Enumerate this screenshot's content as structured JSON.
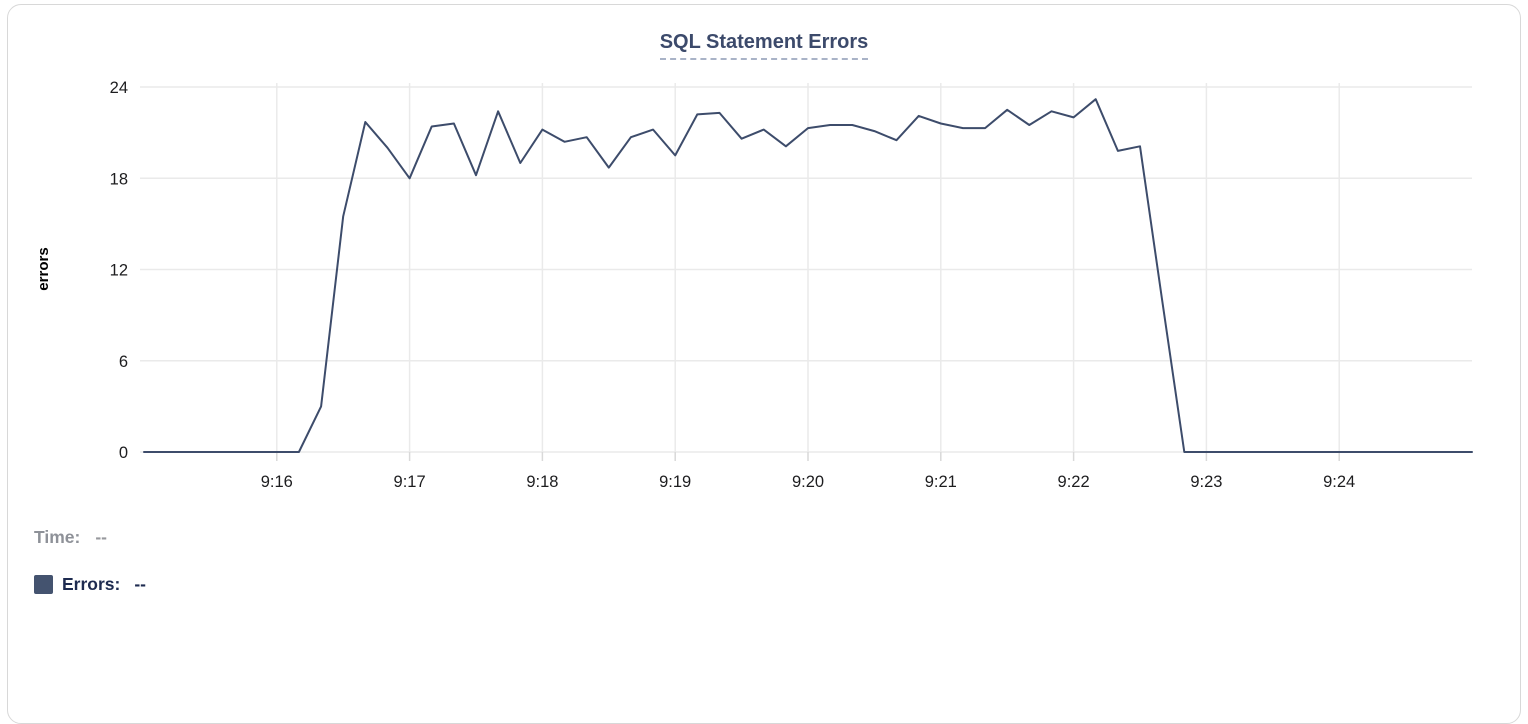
{
  "title": "SQL Statement Errors",
  "colors": {
    "line": "#3d4c6b",
    "title": "#3c4a6b",
    "swatch": "#44536f",
    "tick_label": "#1d1d1f",
    "grid": "#eaeaea",
    "axis_tick": "#d9d9d9"
  },
  "legend": {
    "time_label": "Time:",
    "time_value": "--",
    "series_label": "Errors:",
    "series_value": "--"
  },
  "chart_data": {
    "type": "line",
    "title": "SQL Statement Errors",
    "xlabel": "",
    "ylabel": "errors",
    "ylim": [
      0,
      24
    ],
    "yticks": [
      0,
      6,
      12,
      18,
      24
    ],
    "xticks": [
      "9:16",
      "9:17",
      "9:18",
      "9:19",
      "9:20",
      "9:21",
      "9:22",
      "9:23",
      "9:24"
    ],
    "x_range": [
      "9:15:00",
      "9:25:00"
    ],
    "grid": true,
    "legend_position": "below-left",
    "series": [
      {
        "name": "Errors",
        "color": "#3d4c6b",
        "points": [
          [
            "9:15:00",
            0
          ],
          [
            "9:15:10",
            0
          ],
          [
            "9:15:20",
            0
          ],
          [
            "9:15:30",
            0
          ],
          [
            "9:15:40",
            0
          ],
          [
            "9:15:50",
            0
          ],
          [
            "9:16:00",
            0
          ],
          [
            "9:16:10",
            0
          ],
          [
            "9:16:20",
            3
          ],
          [
            "9:16:30",
            15.5
          ],
          [
            "9:16:40",
            21.7
          ],
          [
            "9:16:50",
            20
          ],
          [
            "9:17:00",
            18
          ],
          [
            "9:17:10",
            21.4
          ],
          [
            "9:17:20",
            21.6
          ],
          [
            "9:17:30",
            18.2
          ],
          [
            "9:17:40",
            22.4
          ],
          [
            "9:17:50",
            19
          ],
          [
            "9:18:00",
            21.2
          ],
          [
            "9:18:10",
            20.4
          ],
          [
            "9:18:20",
            20.7
          ],
          [
            "9:18:30",
            18.7
          ],
          [
            "9:18:40",
            20.7
          ],
          [
            "9:18:50",
            21.2
          ],
          [
            "9:19:00",
            19.5
          ],
          [
            "9:19:10",
            22.2
          ],
          [
            "9:19:20",
            22.3
          ],
          [
            "9:19:30",
            20.6
          ],
          [
            "9:19:40",
            21.2
          ],
          [
            "9:19:50",
            20.1
          ],
          [
            "9:20:00",
            21.3
          ],
          [
            "9:20:10",
            21.5
          ],
          [
            "9:20:20",
            21.5
          ],
          [
            "9:20:30",
            21.1
          ],
          [
            "9:20:40",
            20.5
          ],
          [
            "9:20:50",
            22.1
          ],
          [
            "9:21:00",
            21.6
          ],
          [
            "9:21:10",
            21.3
          ],
          [
            "9:21:20",
            21.3
          ],
          [
            "9:21:30",
            22.5
          ],
          [
            "9:21:40",
            21.5
          ],
          [
            "9:21:50",
            22.4
          ],
          [
            "9:22:00",
            22
          ],
          [
            "9:22:10",
            23.2
          ],
          [
            "9:22:20",
            19.8
          ],
          [
            "9:22:30",
            20.1
          ],
          [
            "9:22:40",
            10
          ],
          [
            "9:22:50",
            0
          ],
          [
            "9:23:00",
            0
          ],
          [
            "9:23:10",
            0
          ],
          [
            "9:23:20",
            0
          ],
          [
            "9:23:30",
            0
          ],
          [
            "9:23:40",
            0
          ],
          [
            "9:23:50",
            0
          ],
          [
            "9:24:00",
            0
          ],
          [
            "9:24:10",
            0
          ],
          [
            "9:24:20",
            0
          ],
          [
            "9:24:30",
            0
          ],
          [
            "9:24:40",
            0
          ],
          [
            "9:24:50",
            0
          ],
          [
            "9:25:00",
            0
          ]
        ]
      }
    ]
  }
}
